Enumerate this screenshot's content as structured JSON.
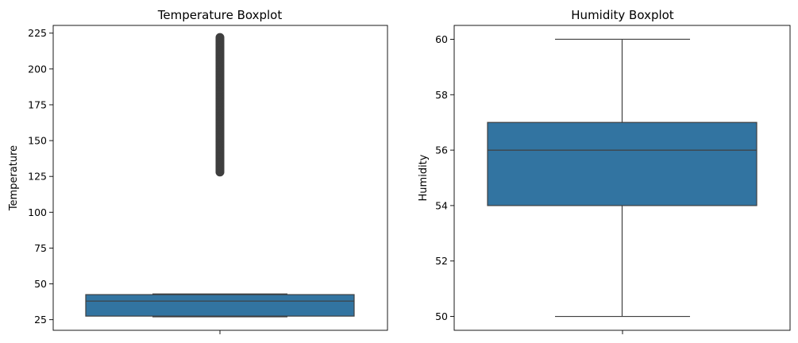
{
  "colors": {
    "box_fill": "#3274a1",
    "line": "#3f3f3f",
    "outlier": "#3f3f3f"
  },
  "chart_data": [
    {
      "type": "boxplot",
      "title": "Temperature Boxplot",
      "xlabel": "",
      "ylabel": "Temperature",
      "ylim": [
        17.6,
        230.4
      ],
      "yticks": [
        25,
        50,
        75,
        100,
        125,
        150,
        175,
        200,
        225
      ],
      "grid": false,
      "box": {
        "whisker_low": 27,
        "q1": 27.5,
        "median": 38,
        "q3": 42.5,
        "whisker_high": 43
      },
      "outliers": {
        "min": 128,
        "max": 222
      }
    },
    {
      "type": "boxplot",
      "title": "Humidity Boxplot",
      "xlabel": "",
      "ylabel": "Humidity",
      "ylim": [
        49.5,
        60.5
      ],
      "yticks": [
        50,
        52,
        54,
        56,
        58,
        60
      ],
      "grid": false,
      "box": {
        "whisker_low": 50,
        "q1": 54,
        "median": 56,
        "q3": 57,
        "whisker_high": 60
      },
      "outliers": null
    }
  ]
}
